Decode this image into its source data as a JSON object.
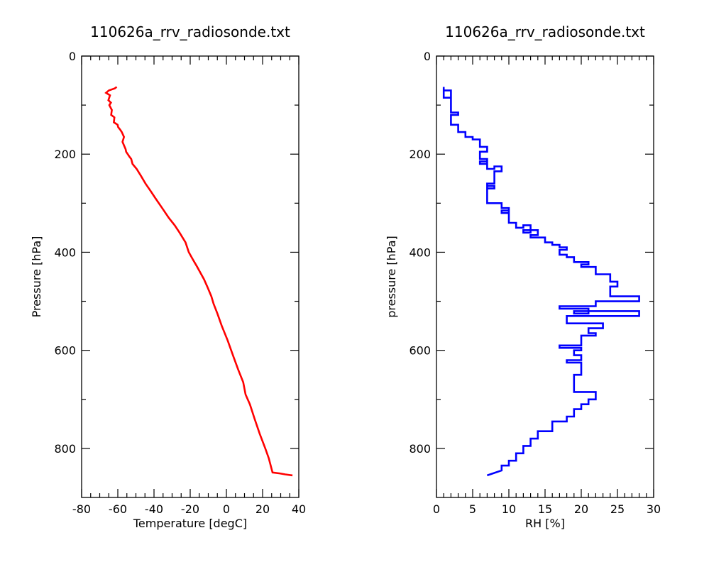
{
  "chart_data": [
    {
      "type": "line",
      "title": "110626a_rrv_radiosonde.txt",
      "xlabel": "Temperature [degC]",
      "ylabel": "Pressure [hPa]",
      "xlim": [
        -80,
        40
      ],
      "ylim": [
        0,
        900
      ],
      "y_inverted": true,
      "x_ticks": [
        -80,
        -60,
        -40,
        -20,
        0,
        20,
        40
      ],
      "y_ticks": [
        0,
        200,
        400,
        600,
        800
      ],
      "x_tick_labels": [
        "-80",
        "-60",
        "-40",
        "-20",
        "0",
        "20",
        "40"
      ],
      "y_tick_labels": [
        "0",
        "200",
        "400",
        "600",
        "800"
      ],
      "grid": false,
      "series": [
        {
          "color": "#ff0000",
          "x": [
            -60.6,
            -61.7,
            -64.9,
            -66.5,
            -64.3,
            -65.2,
            -63.8,
            -64.7,
            -63.3,
            -63.7,
            -61.9,
            -62.2,
            -60.1,
            -59.8,
            -58.7,
            -57.8,
            -56.6,
            -57.4,
            -55.7,
            -55.4,
            -53.6,
            -52.6,
            -51.9,
            -49.6,
            -47.1,
            -44.7,
            -41.9,
            -39.2,
            -35.5,
            -31.8,
            -28.6,
            -25.9,
            -22.6,
            -20.8,
            -18.5,
            -16.1,
            -12.4,
            -10.6,
            -8.3,
            -7.1,
            -5.0,
            -2.6,
            0.7,
            3.6,
            6.6,
            9.3,
            10.6,
            13.0,
            15.6,
            18.4,
            21.5,
            23.4,
            25.5,
            29.5,
            32.5,
            36.5
          ],
          "y": [
            63,
            66,
            70,
            75,
            80,
            90,
            95,
            100,
            110,
            120,
            125,
            135,
            140,
            145,
            150,
            155,
            165,
            175,
            190,
            195,
            205,
            210,
            220,
            230,
            245,
            260,
            275,
            290,
            310,
            330,
            345,
            360,
            380,
            400,
            415,
            430,
            455,
            470,
            490,
            505,
            525,
            550,
            580,
            610,
            640,
            665,
            690,
            710,
            740,
            770,
            800,
            820,
            849,
            851,
            853,
            855
          ]
        }
      ]
    },
    {
      "type": "line",
      "title": "110626a_rrv_radiosonde.txt",
      "xlabel": "RH [%]",
      "ylabel": "pressure [hPa]",
      "xlim": [
        0,
        30
      ],
      "ylim": [
        0,
        900
      ],
      "y_inverted": true,
      "x_ticks": [
        0,
        5,
        10,
        15,
        20,
        25,
        30
      ],
      "y_ticks": [
        0,
        200,
        400,
        600,
        800
      ],
      "x_tick_labels": [
        "0",
        "5",
        "10",
        "15",
        "20",
        "25",
        "30"
      ],
      "y_tick_labels": [
        "0",
        "200",
        "400",
        "600",
        "800"
      ],
      "grid": false,
      "series": [
        {
          "color": "#0000ff",
          "x": [
            1,
            1,
            2,
            2,
            1,
            1,
            2,
            2,
            3,
            3,
            2,
            2,
            3,
            3,
            4,
            4,
            5,
            5,
            6,
            6,
            7,
            7,
            6,
            6,
            7,
            7,
            6,
            6,
            7,
            7,
            8,
            8,
            9,
            9,
            8,
            8,
            7,
            7,
            8,
            8,
            7,
            7,
            9,
            9,
            10,
            10,
            9,
            9,
            10,
            10,
            11,
            11,
            12,
            12,
            13,
            13,
            12,
            12,
            14,
            14,
            13,
            13,
            15,
            15,
            16,
            16,
            17,
            17,
            18,
            18,
            17,
            17,
            18,
            18,
            19,
            19,
            21,
            21,
            20,
            20,
            22,
            22,
            24,
            24,
            25,
            25,
            24,
            24,
            28,
            28,
            22,
            22,
            17,
            17,
            21,
            21,
            19,
            19,
            28,
            28,
            18,
            18,
            23,
            23,
            21,
            21,
            22,
            22,
            20,
            20,
            17,
            17,
            20,
            20,
            19,
            19,
            20,
            20,
            18,
            18,
            20,
            20,
            19,
            19,
            22,
            22,
            21,
            21,
            20,
            20,
            19,
            19,
            18,
            18,
            16,
            16,
            14,
            14,
            13,
            13,
            12,
            12,
            11,
            11,
            10,
            10,
            9,
            9,
            7
          ],
          "y": [
            63,
            70,
            70,
            85,
            85,
            70,
            70,
            115,
            115,
            120,
            120,
            140,
            140,
            155,
            155,
            165,
            165,
            170,
            170,
            185,
            185,
            195,
            195,
            210,
            210,
            220,
            220,
            215,
            215,
            230,
            230,
            225,
            225,
            235,
            235,
            260,
            260,
            270,
            270,
            265,
            265,
            300,
            300,
            310,
            310,
            320,
            320,
            315,
            315,
            340,
            340,
            350,
            350,
            345,
            345,
            360,
            360,
            355,
            355,
            365,
            365,
            370,
            370,
            380,
            380,
            385,
            385,
            390,
            390,
            395,
            395,
            405,
            405,
            410,
            410,
            420,
            420,
            425,
            425,
            430,
            430,
            445,
            445,
            460,
            460,
            470,
            470,
            490,
            490,
            500,
            500,
            510,
            510,
            515,
            515,
            525,
            525,
            520,
            520,
            530,
            530,
            545,
            545,
            555,
            555,
            565,
            565,
            570,
            570,
            590,
            590,
            595,
            595,
            600,
            600,
            610,
            610,
            620,
            620,
            625,
            625,
            650,
            650,
            685,
            685,
            700,
            700,
            710,
            710,
            720,
            720,
            735,
            735,
            745,
            745,
            765,
            765,
            780,
            780,
            795,
            795,
            810,
            810,
            825,
            825,
            835,
            835,
            845,
            855
          ]
        }
      ]
    }
  ]
}
